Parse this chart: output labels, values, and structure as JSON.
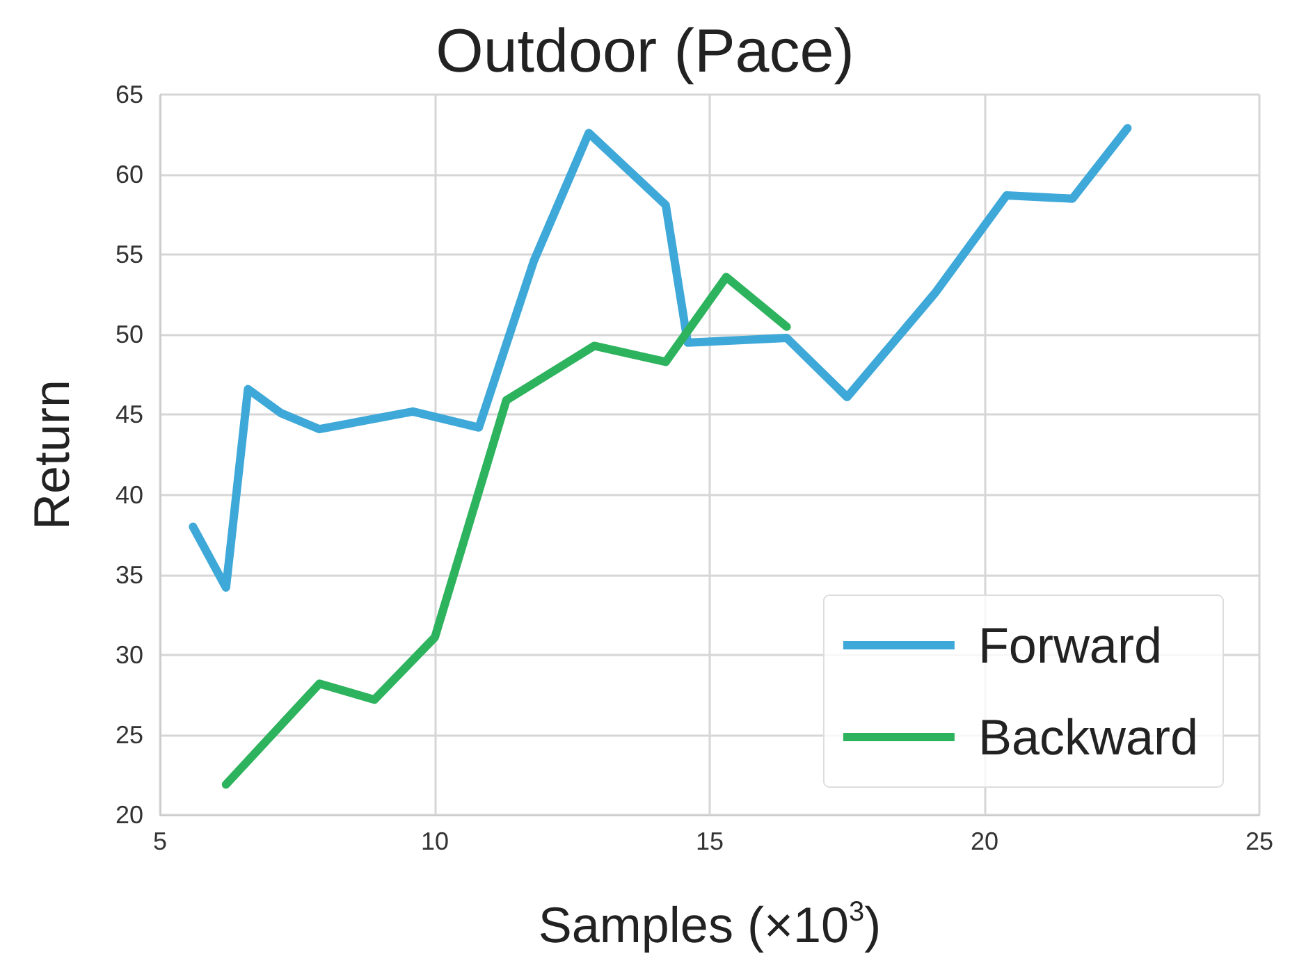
{
  "chart_data": {
    "type": "line",
    "title": "Outdoor (Pace)",
    "xlabel": "Samples (×10$^{3}$)",
    "ylabel": "Return",
    "xlim": [
      5,
      25
    ],
    "xticks": [
      5,
      10,
      15,
      20,
      25
    ],
    "ylim": [
      20,
      65
    ],
    "yticks": [
      20,
      25,
      30,
      35,
      40,
      45,
      50,
      55,
      60,
      65
    ],
    "grid": true,
    "legend": "bottom right",
    "marker": "none",
    "line_style": "solid",
    "series": [
      {
        "name": "Forward",
        "color": "#3ea8d8",
        "x": [
          5.6,
          6.2,
          6.6,
          7.2,
          7.9,
          9.6,
          10.8,
          11.8,
          12.8,
          14.2,
          14.6,
          16.4,
          17.5,
          19.1,
          20.4,
          21.6,
          22.6
        ],
        "values": [
          38.0,
          34.2,
          46.6,
          45.1,
          44.1,
          45.2,
          44.2,
          54.6,
          62.6,
          58.1,
          49.5,
          49.8,
          46.1,
          52.6,
          58.7,
          58.5,
          62.9
        ]
      },
      {
        "name": "Backward",
        "color": "#2db35d",
        "x": [
          6.2,
          7.9,
          8.9,
          10.0,
          11.3,
          12.9,
          14.2,
          15.3,
          16.4
        ],
        "values": [
          21.9,
          28.2,
          27.2,
          31.1,
          45.9,
          49.3,
          48.3,
          53.6,
          50.5
        ]
      }
    ]
  }
}
